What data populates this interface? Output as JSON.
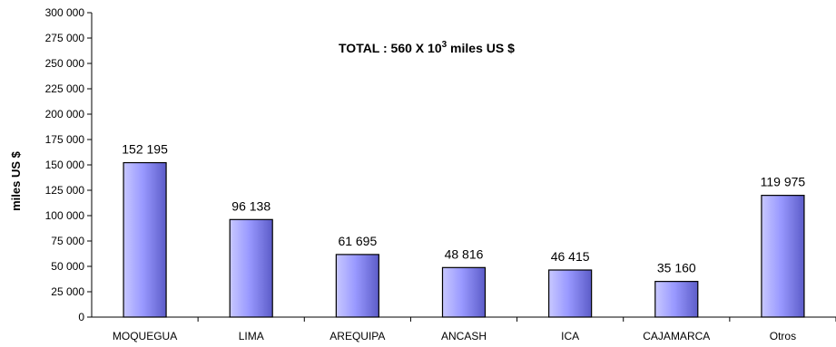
{
  "chart_data": {
    "type": "bar",
    "categories": [
      "MOQUEGUA",
      "LIMA",
      "AREQUIPA",
      "ANCASH",
      "ICA",
      "CAJAMARCA",
      "Otros"
    ],
    "values": [
      152195,
      96138,
      61695,
      48816,
      46415,
      35160,
      119975
    ],
    "value_labels": [
      "152 195",
      "96 138",
      "61 695",
      "48 816",
      "46 415",
      "35 160",
      "119 975"
    ],
    "ylabel": "miles US $",
    "xlabel": "",
    "ylim": [
      0,
      300000
    ],
    "yticks": [
      0,
      25000,
      50000,
      75000,
      100000,
      125000,
      150000,
      175000,
      200000,
      225000,
      250000,
      275000,
      300000
    ],
    "ytick_labels": [
      "0",
      "25 000",
      "50 000",
      "75 000",
      "100 000",
      "125 000",
      "150 000",
      "175 000",
      "200 000",
      "225 000",
      "250 000",
      "275 000",
      "300 000"
    ],
    "annotation": {
      "prefix": "TOTAL : 560 X 10",
      "superscript": "3",
      "suffix": " miles  US $"
    },
    "grid": false,
    "legend": "none",
    "colors": {
      "bar_light": "#c8c8ff",
      "bar_mid": "#9999ff",
      "bar_dark": "#5c5cc8",
      "bar_stroke": "#000000",
      "axis": "#000000"
    }
  }
}
